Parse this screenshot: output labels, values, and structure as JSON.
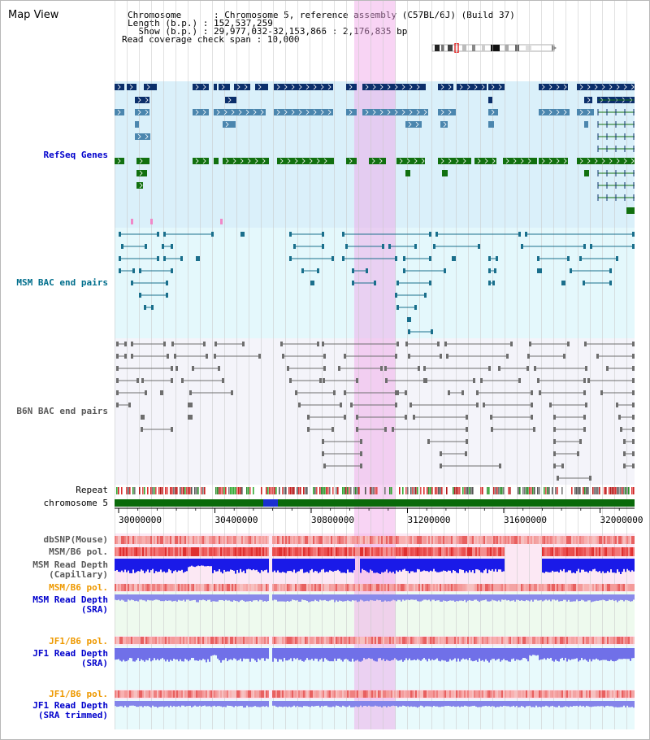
{
  "title": "Map View",
  "info": {
    "chromosome_key": "Chromosome      : ",
    "chromosome_val": "Chromosome 5, reference assembly (C57BL/6J) (Build 37)",
    "length_key": "Length (b.p.) : ",
    "length_val": "152,537,259",
    "show_key": "  Show (b.p.) : ",
    "show_val": "29,977,032-32,153,866 : 2,176,835 bp",
    "coverage_key": "Read coverage check span : ",
    "coverage_val": "10,000"
  },
  "tracks": {
    "refseq": "RefSeq Genes",
    "msm_bac": "MSM BAC end pairs",
    "b6n_bac": "B6N BAC end pairs",
    "repeat": "Repeat",
    "chromosome": "chromosome 5",
    "dbsnp": "dbSNP(Mouse)",
    "msm_b6_pol_1": "MSM/B6 pol.",
    "msm_depth_cap_1": "MSM Read Depth",
    "msm_depth_cap_2": "(Capillary)",
    "msm_b6_pol_2": "MSM/B6 pol.",
    "msm_depth_sra_1": "MSM Read Depth",
    "msm_depth_sra_2": "(SRA)",
    "jf1_b6_pol_1": "JF1/B6 pol.",
    "jf1_depth_sra_1": "JF1 Read Depth",
    "jf1_depth_sra_2": "(SRA)",
    "jf1_b6_pol_2": "JF1/B6 pol.",
    "jf1_depth_trim_1": "JF1 Read Depth",
    "jf1_depth_trim_2": "(SRA trimmed)"
  },
  "axis_ticks": [
    "30000000",
    "30400000",
    "30800000",
    "31200000",
    "31600000",
    "32000000"
  ],
  "colors": {
    "refseq_dark": "#0b2f6b",
    "refseq_mid": "#4b86ae",
    "refseq_green": "#11700f",
    "refseq_bg": "#daf0fa",
    "msm_bac": "#1a6f8c",
    "b6n_bac": "#6e6e6e",
    "highlight": "#f3b7ea",
    "label_blue": "#0000cc",
    "label_teal": "#006e8c",
    "label_orange": "#ee9900",
    "label_gray": "#5a5a5a"
  }
}
